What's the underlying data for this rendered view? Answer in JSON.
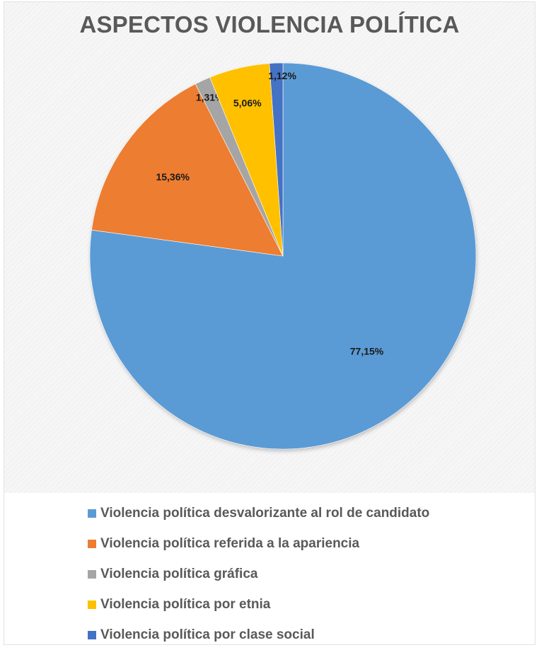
{
  "chart_data": {
    "type": "pie",
    "title": "ASPECTOS VIOLENCIA POLÍTICA",
    "slices": [
      {
        "name": "Violencia política desvalorizante al rol de candidato",
        "value": 77.15,
        "label": "77,15%",
        "color": "#5b9bd5"
      },
      {
        "name": "Violencia política referida a la apariencia",
        "value": 15.36,
        "label": "15,36%",
        "color": "#ed7d31"
      },
      {
        "name": "Violencia política gráfica",
        "value": 1.31,
        "label": "1,31%",
        "color": "#a5a5a5"
      },
      {
        "name": "Violencia política por etnia",
        "value": 5.06,
        "label": "5,06%",
        "color": "#ffc000"
      },
      {
        "name": "Violencia política por clase social",
        "value": 1.12,
        "label": "1,12%",
        "color": "#4472c4"
      }
    ],
    "legend_position": "bottom"
  }
}
